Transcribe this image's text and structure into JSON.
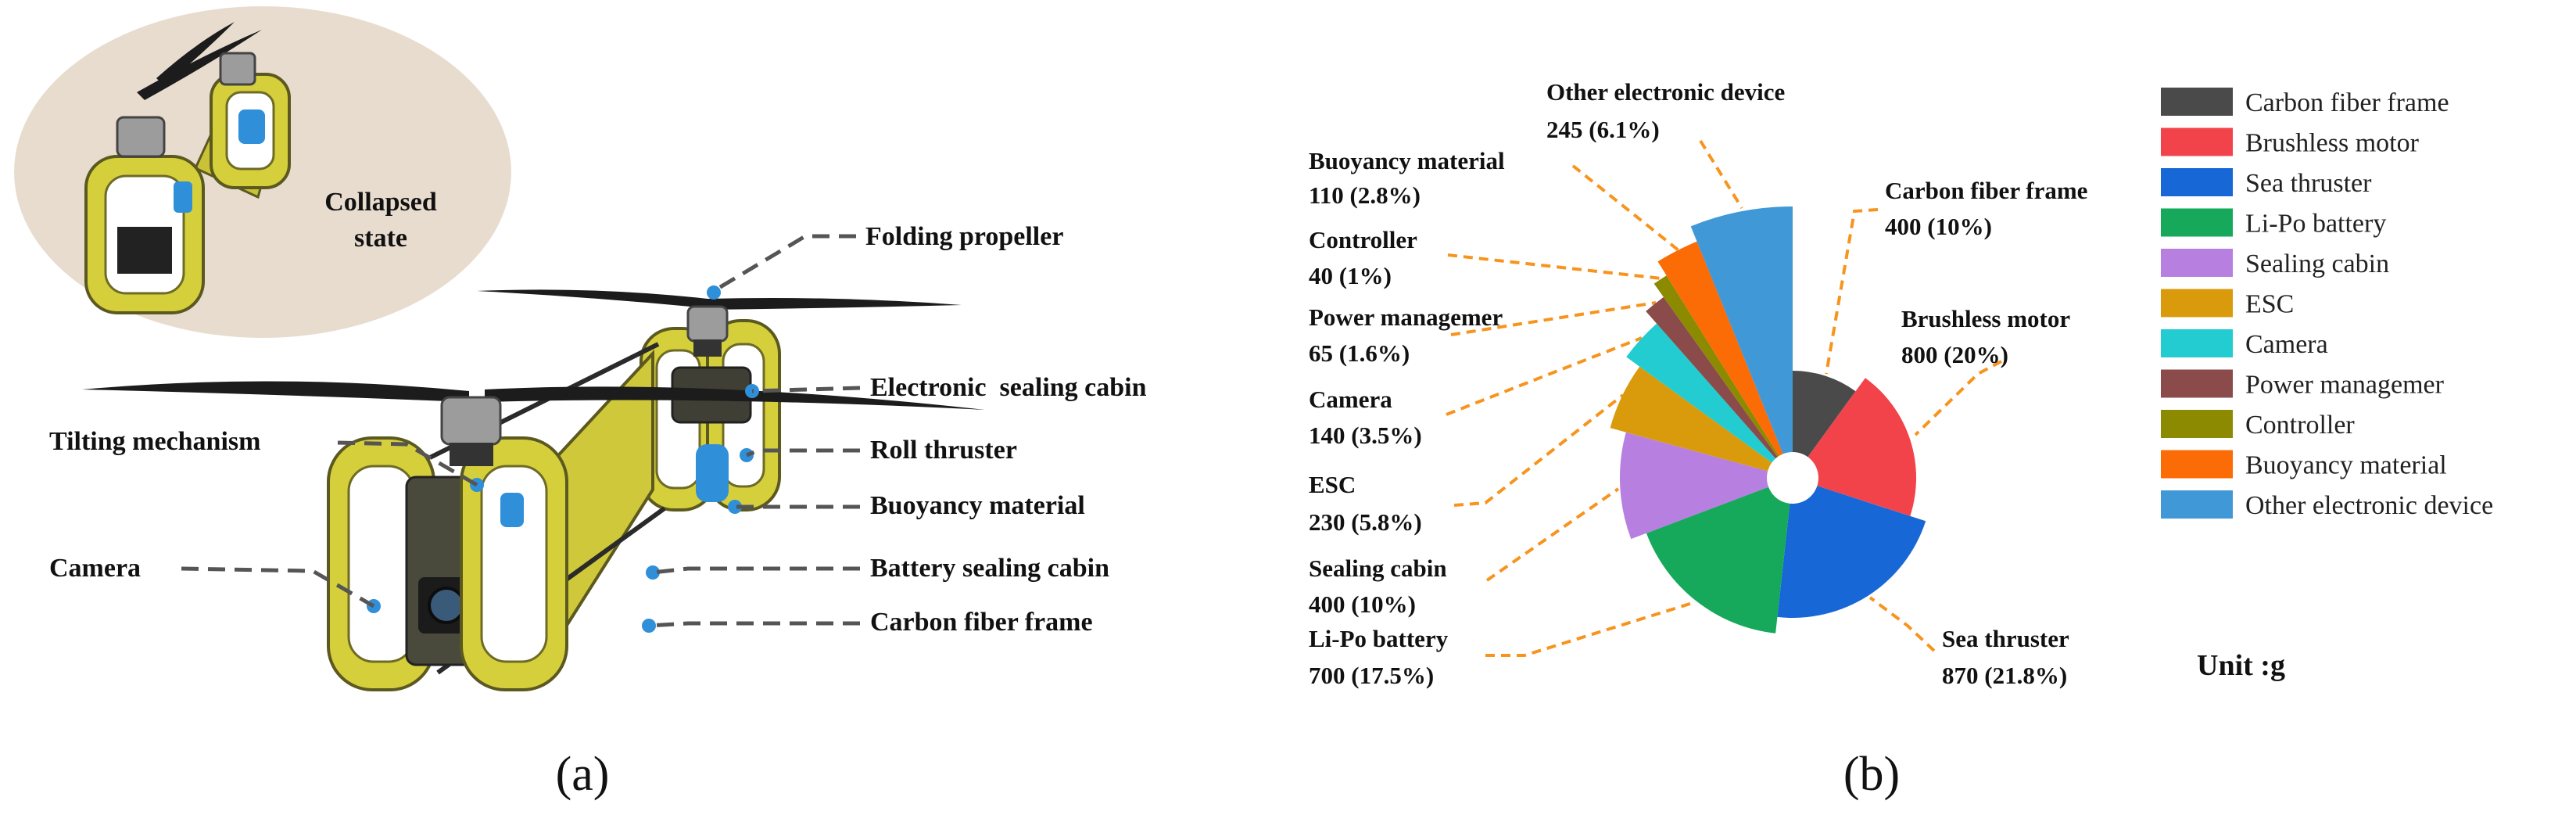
{
  "figure": {
    "panel_a": {
      "panel_label": "(a)",
      "inset_text": [
        "Collapsed",
        "state"
      ],
      "component_labels": {
        "folding_propeller": "Folding propeller",
        "electronic_sealing_cabin": "Electronic  sealing cabin",
        "roll_thruster": "Roll thruster",
        "buoyancy_material": "Buoyancy material",
        "battery_sealing_cabin": "Battery sealing cabin",
        "carbon_fiber_frame": "Carbon fiber frame",
        "tilting_mechanism": "Tilting mechanism",
        "camera": "Camera"
      }
    },
    "panel_b": {
      "panel_label": "(b)"
    }
  },
  "chart_data": {
    "type": "pie",
    "categories": [
      "Carbon fiber frame",
      "Brushless motor",
      "Sea thruster",
      "Li-Po battery",
      "Sealing cabin",
      "ESC",
      "Camera",
      "Power managemer",
      "Controller",
      "Buoyancy material",
      "Other electronic device"
    ],
    "values": [
      400,
      800,
      870,
      700,
      400,
      230,
      140,
      65,
      40,
      110,
      245
    ],
    "percent": [
      10,
      20,
      21.8,
      17.5,
      10,
      5.8,
      3.5,
      1.6,
      1,
      2.8,
      6.1
    ],
    "value_labels": [
      "400 (10%)",
      "800 (20%)",
      "870 (21.8%)",
      "700 (17.5%)",
      "400 (10%)",
      "230 (5.8%)",
      "140 (3.5%)",
      "65 (1.6%)",
      "40 (1%)",
      "110 (2.8%)",
      "245 (6.1%)"
    ],
    "colors": [
      "#4a4a4a",
      "#f2434a",
      "#1767d6",
      "#16a85b",
      "#b77fe0",
      "#d99a0b",
      "#22ccd0",
      "#8b4b4b",
      "#8c8a00",
      "#fb6b06",
      "#4198d6"
    ],
    "legend_position": "right",
    "unit_label": "Unit :g"
  }
}
